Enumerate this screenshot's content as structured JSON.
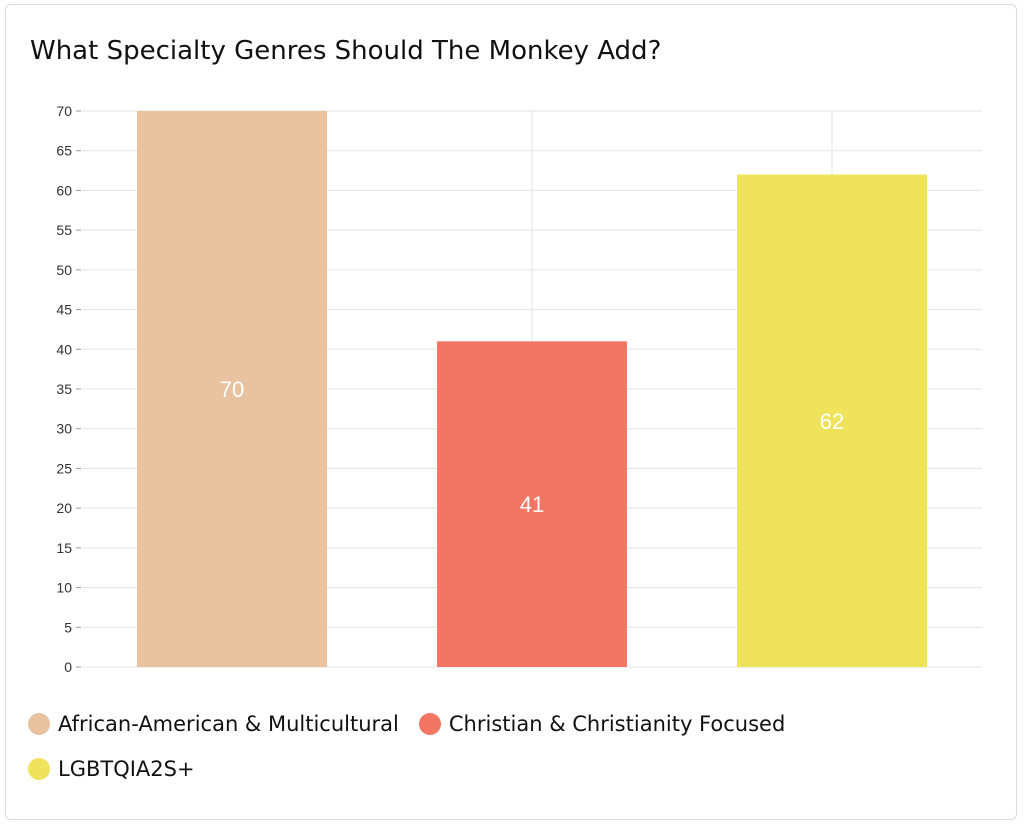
{
  "chart_data": {
    "type": "bar",
    "title": "What Specialty Genres Should The Monkey Add?",
    "categories": [
      "African-American & Multicultural",
      "Christian & Christianity Focused",
      "LGBTQIA2S+"
    ],
    "values": [
      70,
      41,
      62
    ],
    "colors": [
      "#e9c2a0",
      "#f37563",
      "#f0e35c"
    ],
    "ylim": [
      0,
      70
    ],
    "yticks": [
      0,
      5,
      10,
      15,
      20,
      25,
      30,
      35,
      40,
      45,
      50,
      55,
      60,
      65,
      70
    ],
    "grid": true,
    "legend": "bottom",
    "data_labels": true
  }
}
